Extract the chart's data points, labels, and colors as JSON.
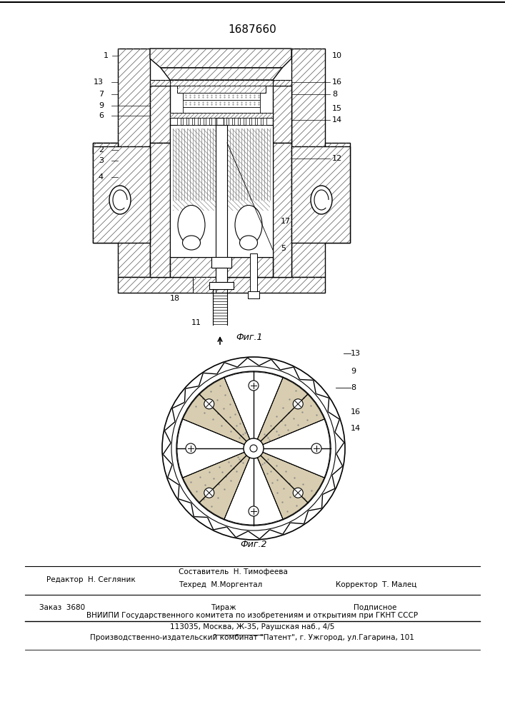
{
  "patent_number": "1687660",
  "fig1_label": "Фиг.1",
  "fig2_label": "Фиг.2",
  "editor_line": "Редактор  Н. Сегляник",
  "composer_line1": "Составитель  Н. Тимофеева",
  "composer_line2": "Техред  М.Моргентал",
  "corrector_line": "Корректор  Т. Малец",
  "order_line": "Заказ  3680",
  "tirazh_line": "Тираж",
  "podpisnoe_line": "Подписное",
  "vniiipi_line": "ВНИИПИ Государственного комитета по изобретениям и открытиям при ГКНТ СССР",
  "address_line": "113035, Москва, Ж-35, Раушская наб., 4/5",
  "factory_line": "Производственно-издательский комбинат \"Патент\", г. Ужгород, ул.Гагарина, 101",
  "bg_color": "#ffffff"
}
